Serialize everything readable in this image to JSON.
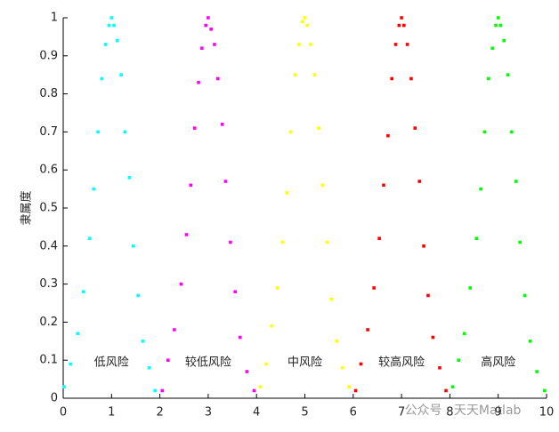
{
  "chart_data": {
    "type": "scatter",
    "ylabel": "隶属度",
    "xlim": [
      0,
      10
    ],
    "ylim": [
      0,
      1
    ],
    "xticks": [
      0,
      1,
      2,
      3,
      4,
      5,
      6,
      7,
      8,
      9,
      10
    ],
    "yticks": [
      0,
      0.1,
      0.2,
      0.3,
      0.4,
      0.5,
      0.6,
      0.7,
      0.8,
      0.9,
      1
    ],
    "annotations": [
      "低风险",
      "较低风险",
      "中风险",
      "较高风险",
      "高风险"
    ],
    "watermark": "公众号 · 天天Matlab",
    "series": [
      {
        "color": "#00ffff",
        "x": [
          0.02,
          0.15,
          0.3,
          0.42,
          0.55,
          0.63,
          0.72,
          0.8,
          0.88,
          0.95,
          1.0,
          1.05,
          1.12,
          1.2,
          1.28,
          1.37,
          1.45,
          1.55,
          1.65,
          1.78,
          1.9
        ],
        "values": [
          0.03,
          0.09,
          0.17,
          0.28,
          0.42,
          0.55,
          0.7,
          0.84,
          0.93,
          0.98,
          1,
          0.98,
          0.94,
          0.85,
          0.7,
          0.58,
          0.4,
          0.27,
          0.15,
          0.08,
          0.02
        ]
      },
      {
        "color": "#ff00ff",
        "x": [
          2.05,
          2.17,
          2.3,
          2.44,
          2.55,
          2.64,
          2.72,
          2.8,
          2.87,
          2.95,
          3.0,
          3.06,
          3.13,
          3.2,
          3.29,
          3.36,
          3.46,
          3.56,
          3.66,
          3.8,
          3.95
        ],
        "values": [
          0.02,
          0.1,
          0.18,
          0.3,
          0.43,
          0.56,
          0.71,
          0.83,
          0.92,
          0.98,
          1,
          0.97,
          0.93,
          0.84,
          0.72,
          0.57,
          0.41,
          0.28,
          0.16,
          0.07,
          0.02
        ]
      },
      {
        "color": "#ffff00",
        "x": [
          4.08,
          4.2,
          4.31,
          4.43,
          4.54,
          4.63,
          4.71,
          4.8,
          4.88,
          4.95,
          5.0,
          5.05,
          5.12,
          5.2,
          5.29,
          5.37,
          5.46,
          5.55,
          5.66,
          5.78,
          5.92
        ],
        "values": [
          0.03,
          0.09,
          0.19,
          0.29,
          0.41,
          0.54,
          0.7,
          0.85,
          0.93,
          0.99,
          1,
          0.98,
          0.93,
          0.85,
          0.71,
          0.56,
          0.41,
          0.26,
          0.15,
          0.08,
          0.03
        ]
      },
      {
        "color": "#ff0000",
        "x": [
          6.05,
          6.16,
          6.3,
          6.43,
          6.54,
          6.63,
          6.72,
          6.8,
          6.88,
          6.95,
          7.0,
          7.05,
          7.12,
          7.2,
          7.28,
          7.37,
          7.46,
          7.55,
          7.65,
          7.79,
          7.92
        ],
        "values": [
          0.02,
          0.09,
          0.18,
          0.29,
          0.42,
          0.56,
          0.69,
          0.84,
          0.93,
          0.98,
          1,
          0.98,
          0.93,
          0.84,
          0.71,
          0.57,
          0.4,
          0.27,
          0.16,
          0.08,
          0.02
        ]
      },
      {
        "color": "#00ff00",
        "x": [
          8.06,
          8.18,
          8.3,
          8.42,
          8.55,
          8.64,
          8.72,
          8.8,
          8.88,
          8.95,
          9.0,
          9.05,
          9.12,
          9.2,
          9.28,
          9.37,
          9.45,
          9.55,
          9.66,
          9.8,
          9.96
        ],
        "values": [
          0.03,
          0.1,
          0.17,
          0.29,
          0.42,
          0.55,
          0.7,
          0.84,
          0.92,
          0.98,
          1,
          0.98,
          0.94,
          0.85,
          0.7,
          0.57,
          0.41,
          0.27,
          0.15,
          0.07,
          0.02
        ]
      }
    ]
  }
}
